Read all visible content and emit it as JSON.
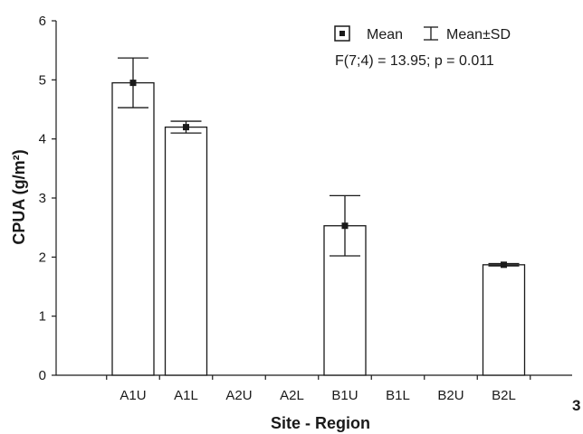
{
  "chart_data": {
    "type": "bar",
    "categories": [
      "A1U",
      "A1L",
      "A2U",
      "A2L",
      "B1U",
      "B1L",
      "B2U",
      "B2L"
    ],
    "series": [
      {
        "values": [
          4.95,
          4.2,
          null,
          null,
          2.53,
          null,
          null,
          1.87
        ],
        "sd": [
          0.42,
          0.1,
          null,
          null,
          0.51,
          null,
          null,
          0.02
        ]
      }
    ],
    "xlabel": "Site - Region",
    "ylabel": "CPUA (g/m²)",
    "ylim": [
      0,
      6
    ],
    "yticks": [
      "0",
      "1",
      "2",
      "3",
      "4",
      "5",
      "6"
    ],
    "legend": {
      "placement": "top-right",
      "entries": [
        "Mean",
        "Mean±SD"
      ]
    },
    "annotation": "F(7;4) = 13.95; p = 0.011",
    "corner_text": "3",
    "grid": false
  }
}
